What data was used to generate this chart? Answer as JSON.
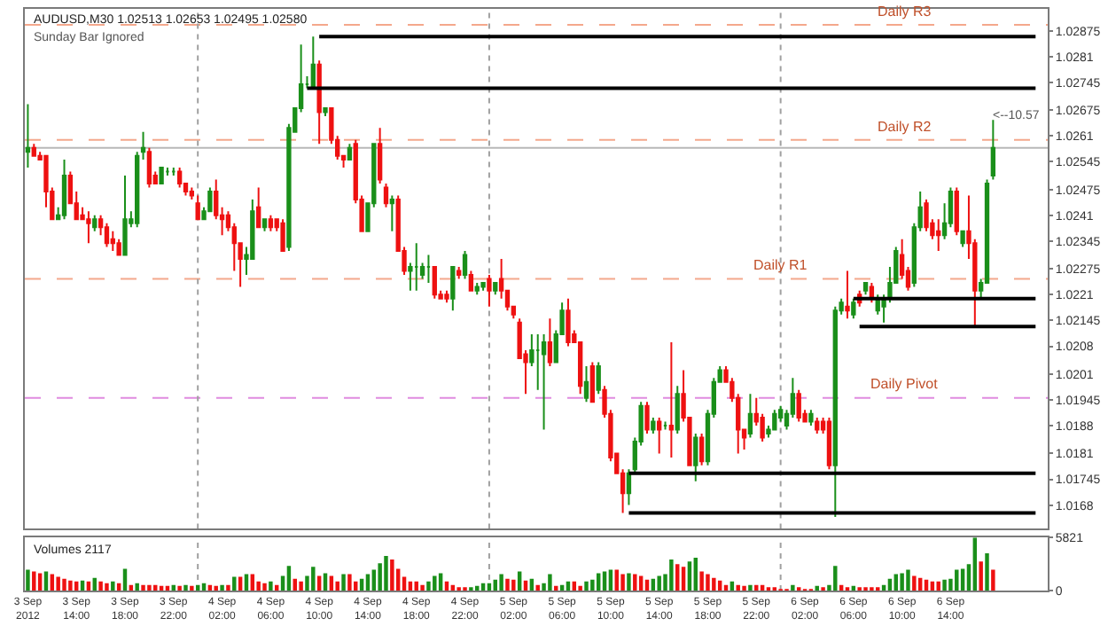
{
  "chart_data": [
    {
      "type": "candlestick",
      "title": "AUDUSD,M30 1.02513 1.02653 1.02495 1.02580",
      "subtitle": "Sunday Bar Ignored",
      "colors": [
        "#1a8f1a",
        "#ee1111",
        "#ee1111",
        "#ee1111",
        "#ee1111",
        "#1a8f1a",
        "#1a8f1a",
        "#ee1111",
        "#ee1111",
        "#ee1111",
        "#ee1111",
        "#1a8f1a",
        "#ee1111",
        "#ee1111",
        "#ee1111",
        "#ee1111",
        "#1a8f1a",
        "#1a8f1a",
        "#1a8f1a",
        "#1a8f1a",
        "#ee1111",
        "#ee1111",
        "#1a8f1a",
        "#1a8f1a",
        "#1a8f1a",
        "#ee1111",
        "#ee1111",
        "#ee1111",
        "#ee1111",
        "#1a8f1a",
        "#1a8f1a",
        "#ee1111",
        "#ee1111",
        "#ee1111",
        "#ee1111",
        "#ee1111",
        "#1a8f1a",
        "#1a8f1a",
        "#ee1111",
        "#1a8f1a",
        "#ee1111",
        "#ee1111",
        "#ee1111",
        "#1a8f1a",
        "#1a8f1a",
        "#1a8f1a",
        "#1a8f1a",
        "#1a8f1a",
        "#ee1111",
        "#1a8f1a",
        "#ee1111",
        "#ee1111",
        "#ee1111",
        "#1a8f1a",
        "#ee1111",
        "#ee1111",
        "#1a8f1a",
        "#1a8f1a",
        "#ee1111",
        "#ee1111",
        "#1a8f1a",
        "#ee1111",
        "#ee1111",
        "#1a8f1a",
        "#1a8f1a",
        "#1a8f1a",
        "#1a8f1a",
        "#ee1111",
        "#ee1111",
        "#ee1111",
        "#1a8f1a",
        "#ee1111",
        "#1a8f1a",
        "#ee1111",
        "#1a8f1a",
        "#1a8f1a",
        "#ee1111",
        "#1a8f1a",
        "#ee1111",
        "#ee1111",
        "#ee1111",
        "#ee1111",
        "#ee1111",
        "#1a8f1a",
        "#1a8f1a",
        "#1a8f1a",
        "#ee1111",
        "#1a8f1a",
        "#1a8f1a",
        "#ee1111",
        "#ee1111",
        "#ee1111",
        "#1a8f1a",
        "#ee1111",
        "#1a8f1a",
        "#ee1111",
        "#ee1111",
        "#ee1111",
        "#ee1111",
        "#1a8f1a",
        "#1a8f1a",
        "#1a8f1a",
        "#ee1111",
        "#1a8f1a",
        "#ee1111",
        "#1a8f1a",
        "#ee1111",
        "#1a8f1a",
        "#ee1111",
        "#ee1111",
        "#1a8f1a",
        "#ee1111",
        "#1a8f1a",
        "#1a8f1a",
        "#1a8f1a",
        "#ee1111",
        "#ee1111",
        "#ee1111",
        "#ee1111",
        "#1a8f1a",
        "#ee1111",
        "#ee1111",
        "#1a8f1a",
        "#1a8f1a",
        "#1a8f1a",
        "#1a8f1a",
        "#1a8f1a",
        "#ee1111",
        "#ee1111",
        "#1a8f1a",
        "#ee1111",
        "#ee1111",
        "#ee1111",
        "#1a8f1a",
        "#1a8f1a",
        "#ee1111",
        "#1a8f1a",
        "#ee1111",
        "#1a8f1a",
        "#ee1111",
        "#1a8f1a",
        "#1a8f1a",
        "#1a8f1a",
        "#1a8f1a",
        "#ee1111",
        "#ee1111",
        "#1a8f1a",
        "#1a8f1a",
        "#ee1111",
        "#ee1111",
        "#ee1111",
        "#1a8f1a",
        "#1a8f1a",
        "#ee1111",
        "#1a8f1a",
        "#ee1111",
        "#ee1111",
        "#1a8f1a",
        "#1a8f1a",
        "#1a8f1a"
      ],
      "x": [
        "2012-09-03T10:00",
        "2012-09-03T10:30",
        "2012-09-03T11:00",
        "2012-09-03T11:30",
        "2012-09-03T12:00",
        "2012-09-03T12:30",
        "2012-09-03T13:00",
        "2012-09-03T13:30",
        "2012-09-03T14:00",
        "2012-09-03T14:30",
        "2012-09-03T15:00",
        "2012-09-03T15:30",
        "2012-09-03T16:00",
        "2012-09-03T16:30",
        "2012-09-03T17:00",
        "2012-09-03T17:30",
        "2012-09-03T18:00",
        "2012-09-03T18:30",
        "2012-09-03T19:00",
        "2012-09-03T19:30",
        "2012-09-03T20:00",
        "2012-09-03T20:30",
        "2012-09-03T21:00",
        "2012-09-03T21:30",
        "2012-09-03T22:00",
        "2012-09-03T22:30",
        "2012-09-03T23:00",
        "2012-09-03T23:30",
        "2012-09-04T00:00",
        "2012-09-04T00:30",
        "2012-09-04T01:00",
        "2012-09-04T01:30",
        "2012-09-04T02:00",
        "2012-09-04T02:30",
        "2012-09-04T03:00",
        "2012-09-04T03:30",
        "2012-09-04T04:00",
        "2012-09-04T04:30",
        "2012-09-04T05:00",
        "2012-09-04T05:30",
        "2012-09-04T06:00",
        "2012-09-04T06:30",
        "2012-09-04T07:00",
        "2012-09-04T07:30",
        "2012-09-04T08:00",
        "2012-09-04T08:30",
        "2012-09-04T09:00",
        "2012-09-04T09:30",
        "2012-09-04T10:00",
        "2012-09-04T10:30",
        "2012-09-04T11:00",
        "2012-09-04T11:30",
        "2012-09-04T12:00",
        "2012-09-04T12:30",
        "2012-09-04T13:00",
        "2012-09-04T13:30",
        "2012-09-04T14:00",
        "2012-09-04T14:30",
        "2012-09-04T15:00",
        "2012-09-04T15:30",
        "2012-09-04T16:00",
        "2012-09-04T16:30",
        "2012-09-04T17:00",
        "2012-09-04T17:30",
        "2012-09-04T18:00",
        "2012-09-04T18:30",
        "2012-09-04T19:00",
        "2012-09-04T19:30",
        "2012-09-04T20:00",
        "2012-09-04T20:30",
        "2012-09-04T21:00",
        "2012-09-04T21:30",
        "2012-09-04T22:00",
        "2012-09-04T22:30",
        "2012-09-04T23:00",
        "2012-09-04T23:30",
        "2012-09-05T00:00",
        "2012-09-05T00:30",
        "2012-09-05T01:00",
        "2012-09-05T01:30",
        "2012-09-05T02:00",
        "2012-09-05T02:30",
        "2012-09-05T03:00",
        "2012-09-05T03:30",
        "2012-09-05T04:00",
        "2012-09-05T04:30",
        "2012-09-05T05:00",
        "2012-09-05T05:30",
        "2012-09-05T06:00",
        "2012-09-05T06:30",
        "2012-09-05T07:00",
        "2012-09-05T07:30",
        "2012-09-05T08:00",
        "2012-09-05T08:30",
        "2012-09-05T09:00",
        "2012-09-05T09:30",
        "2012-09-05T10:00",
        "2012-09-05T10:30",
        "2012-09-05T11:00",
        "2012-09-05T11:30",
        "2012-09-05T12:00",
        "2012-09-05T12:30",
        "2012-09-05T13:00",
        "2012-09-05T13:30",
        "2012-09-05T14:00",
        "2012-09-05T14:30",
        "2012-09-05T15:00",
        "2012-09-05T15:30",
        "2012-09-05T16:00",
        "2012-09-05T16:30",
        "2012-09-05T17:00",
        "2012-09-05T17:30",
        "2012-09-05T18:00",
        "2012-09-05T18:30",
        "2012-09-05T19:00",
        "2012-09-05T19:30",
        "2012-09-05T20:00",
        "2012-09-05T20:30",
        "2012-09-05T21:00",
        "2012-09-05T21:30",
        "2012-09-05T22:00",
        "2012-09-05T22:30",
        "2012-09-05T23:00",
        "2012-09-05T23:30",
        "2012-09-06T00:00",
        "2012-09-06T00:30",
        "2012-09-06T01:00",
        "2012-09-06T01:30",
        "2012-09-06T02:00",
        "2012-09-06T02:30",
        "2012-09-06T03:00",
        "2012-09-06T03:30",
        "2012-09-06T04:00",
        "2012-09-06T04:30",
        "2012-09-06T05:00",
        "2012-09-06T05:30",
        "2012-09-06T06:00",
        "2012-09-06T06:30",
        "2012-09-06T07:00",
        "2012-09-06T07:30",
        "2012-09-06T08:00",
        "2012-09-06T08:30",
        "2012-09-06T09:00",
        "2012-09-06T09:30",
        "2012-09-06T10:00",
        "2012-09-06T10:30",
        "2012-09-06T11:00",
        "2012-09-06T11:30",
        "2012-09-06T12:00",
        "2012-09-06T12:30",
        "2012-09-06T13:00",
        "2012-09-06T13:30",
        "2012-09-06T14:00",
        "2012-09-06T14:30",
        "2012-09-06T15:00",
        "2012-09-06T15:30",
        "2012-09-06T16:00",
        "2012-09-06T16:30",
        "2012-09-06T17:00",
        "2012-09-06T17:30"
      ],
      "ohlc": [
        [
          1.0257,
          1.0269,
          1.0253,
          1.0258
        ],
        [
          1.0258,
          1.0259,
          1.0256,
          1.0256
        ],
        [
          1.0256,
          1.0257,
          1.0255,
          1.0255
        ],
        [
          1.0256,
          1.0256,
          1.0243,
          1.0247
        ],
        [
          1.0247,
          1.0248,
          1.024,
          1.024
        ],
        [
          1.024,
          1.0243,
          1.024,
          1.0241
        ],
        [
          1.0241,
          1.0255,
          1.024,
          1.0251
        ],
        [
          1.0251,
          1.0252,
          1.0244,
          1.0244
        ],
        [
          1.0244,
          1.0247,
          1.024,
          1.024
        ],
        [
          1.0241,
          1.0243,
          1.024,
          1.024
        ],
        [
          1.024,
          1.0242,
          1.0234,
          1.0239
        ],
        [
          1.0238,
          1.0241,
          1.0237,
          1.024
        ],
        [
          1.024,
          1.0241,
          1.0236,
          1.0238
        ],
        [
          1.0238,
          1.0239,
          1.0233,
          1.0234
        ],
        [
          1.0235,
          1.0237,
          1.0232,
          1.0234
        ],
        [
          1.0234,
          1.0235,
          1.0231,
          1.0231
        ],
        [
          1.0231,
          1.0251,
          1.0231,
          1.024
        ],
        [
          1.0239,
          1.0242,
          1.0238,
          1.024
        ],
        [
          1.0239,
          1.0257,
          1.0238,
          1.0256
        ],
        [
          1.0257,
          1.0262,
          1.0255,
          1.0258
        ],
        [
          1.0257,
          1.0258,
          1.0248,
          1.0249
        ],
        [
          1.0251,
          1.0252,
          1.0249,
          1.0249
        ],
        [
          1.0249,
          1.0253,
          1.0249,
          1.0253
        ],
        [
          1.0252,
          1.0253,
          1.0251,
          1.0252
        ],
        [
          1.0252,
          1.0253,
          1.0251,
          1.0252
        ],
        [
          1.0252,
          1.0253,
          1.0248,
          1.0249
        ],
        [
          1.0249,
          1.0249,
          1.0246,
          1.0247
        ],
        [
          1.0247,
          1.0248,
          1.0245,
          1.0246
        ],
        [
          1.0244,
          1.0246,
          1.024,
          1.024
        ],
        [
          1.024,
          1.0243,
          1.024,
          1.0242
        ],
        [
          1.0242,
          1.0248,
          1.0242,
          1.0247
        ],
        [
          1.0247,
          1.025,
          1.024,
          1.0241
        ],
        [
          1.0241,
          1.0243,
          1.0236,
          1.024
        ],
        [
          1.0241,
          1.0242,
          1.0237,
          1.0238
        ],
        [
          1.0238,
          1.0239,
          1.0227,
          1.0234
        ],
        [
          1.0234,
          1.0234,
          1.0223,
          1.023
        ],
        [
          1.023,
          1.0233,
          1.0226,
          1.0231
        ],
        [
          1.023,
          1.0245,
          1.023,
          1.0242
        ],
        [
          1.0243,
          1.0248,
          1.0238,
          1.0238
        ],
        [
          1.0238,
          1.024,
          1.0237,
          1.024
        ],
        [
          1.024,
          1.0241,
          1.0237,
          1.0238
        ],
        [
          1.024,
          1.024,
          1.0237,
          1.0238
        ],
        [
          1.0239,
          1.024,
          1.0232,
          1.0232
        ],
        [
          1.0233,
          1.0264,
          1.0232,
          1.0263
        ],
        [
          1.0262,
          1.0268,
          1.0262,
          1.0268
        ],
        [
          1.0268,
          1.0284,
          1.0267,
          1.0274
        ],
        [
          1.0274,
          1.0276,
          1.0273,
          1.0274
        ],
        [
          1.0273,
          1.0286,
          1.0273,
          1.0279
        ],
        [
          1.0279,
          1.028,
          1.0259,
          1.0267
        ],
        [
          1.0267,
          1.0268,
          1.0266,
          1.0268
        ],
        [
          1.0268,
          1.0268,
          1.0259,
          1.026
        ],
        [
          1.026,
          1.0261,
          1.0255,
          1.0256
        ],
        [
          1.0256,
          1.0256,
          1.0253,
          1.0255
        ],
        [
          1.0255,
          1.0259,
          1.0255,
          1.0258
        ],
        [
          1.0259,
          1.026,
          1.0244,
          1.0245
        ],
        [
          1.0245,
          1.0246,
          1.0237,
          1.0237
        ],
        [
          1.0237,
          1.0244,
          1.0237,
          1.0244
        ],
        [
          1.0244,
          1.0259,
          1.0243,
          1.0259
        ],
        [
          1.0259,
          1.0263,
          1.0249,
          1.025
        ],
        [
          1.0248,
          1.0249,
          1.0243,
          1.0244
        ],
        [
          1.0244,
          1.0246,
          1.0237,
          1.0245
        ],
        [
          1.0245,
          1.0246,
          1.0232,
          1.0232
        ],
        [
          1.0232,
          1.0233,
          1.0226,
          1.0227
        ],
        [
          1.0227,
          1.0229,
          1.0222,
          1.0228
        ],
        [
          1.0228,
          1.0234,
          1.0222,
          1.0228
        ],
        [
          1.0226,
          1.0229,
          1.0225,
          1.0228
        ],
        [
          1.0228,
          1.0231,
          1.0224,
          1.0228
        ],
        [
          1.0228,
          1.0228,
          1.022,
          1.0221
        ],
        [
          1.0221,
          1.0222,
          1.022,
          1.022
        ],
        [
          1.0221,
          1.0222,
          1.0219,
          1.022
        ],
        [
          1.022,
          1.0228,
          1.0217,
          1.0228
        ],
        [
          1.0227,
          1.0228,
          1.0225,
          1.0226
        ],
        [
          1.0226,
          1.0232,
          1.0225,
          1.0231
        ],
        [
          1.0226,
          1.0227,
          1.0222,
          1.0222
        ],
        [
          1.0222,
          1.0224,
          1.0221,
          1.0223
        ],
        [
          1.0223,
          1.0224,
          1.0222,
          1.0224
        ],
        [
          1.0225,
          1.0226,
          1.0218,
          1.0222
        ],
        [
          1.0222,
          1.0224,
          1.0221,
          1.0224
        ],
        [
          1.0225,
          1.023,
          1.022,
          1.0222
        ],
        [
          1.0222,
          1.0222,
          1.0217,
          1.0218
        ],
        [
          1.0218,
          1.0218,
          1.0215,
          1.0216
        ],
        [
          1.0214,
          1.0215,
          1.0205,
          1.0205
        ],
        [
          1.0206,
          1.0207,
          1.0196,
          1.0204
        ],
        [
          1.0204,
          1.0211,
          1.0203,
          1.0207
        ],
        [
          1.0207,
          1.0211,
          1.0197,
          1.0207
        ],
        [
          1.0206,
          1.0211,
          1.0187,
          1.0209
        ],
        [
          1.0209,
          1.0215,
          1.0203,
          1.0204
        ],
        [
          1.0204,
          1.0212,
          1.0204,
          1.0211
        ],
        [
          1.0211,
          1.0219,
          1.0211,
          1.0217
        ],
        [
          1.0217,
          1.022,
          1.0208,
          1.0209
        ],
        [
          1.0211,
          1.0212,
          1.0209,
          1.0209
        ],
        [
          1.0209,
          1.0209,
          1.0196,
          1.0198
        ],
        [
          1.0195,
          1.0203,
          1.0194,
          1.0199
        ],
        [
          1.0203,
          1.0204,
          1.0194,
          1.0194
        ],
        [
          1.0197,
          1.0204,
          1.0196,
          1.0203
        ],
        [
          1.0197,
          1.0198,
          1.019,
          1.0191
        ],
        [
          1.0191,
          1.0192,
          1.0179,
          1.018
        ],
        [
          1.0181,
          1.0181,
          1.0176,
          1.0176
        ],
        [
          1.0176,
          1.0177,
          1.0166,
          1.0171
        ],
        [
          1.0171,
          1.0177,
          1.0168,
          1.0176
        ],
        [
          1.0177,
          1.0185,
          1.0176,
          1.0184
        ],
        [
          1.0184,
          1.0194,
          1.0183,
          1.0193
        ],
        [
          1.0193,
          1.0194,
          1.0186,
          1.0187
        ],
        [
          1.0187,
          1.019,
          1.0186,
          1.0189
        ],
        [
          1.0189,
          1.019,
          1.0181,
          1.0187
        ],
        [
          1.0188,
          1.0189,
          1.0187,
          1.0188
        ],
        [
          1.0188,
          1.0209,
          1.018,
          1.0187
        ],
        [
          1.0187,
          1.0198,
          1.0186,
          1.0196
        ],
        [
          1.0196,
          1.0202,
          1.0189,
          1.019
        ],
        [
          1.019,
          1.019,
          1.0178,
          1.0178
        ],
        [
          1.0178,
          1.0186,
          1.0174,
          1.0185
        ],
        [
          1.0185,
          1.0186,
          1.0178,
          1.0179
        ],
        [
          1.0179,
          1.0192,
          1.0178,
          1.0191
        ],
        [
          1.0191,
          1.02,
          1.019,
          1.0199
        ],
        [
          1.0199,
          1.0203,
          1.0199,
          1.0202
        ],
        [
          1.0202,
          1.0203,
          1.0199,
          1.0199
        ],
        [
          1.0199,
          1.02,
          1.0194,
          1.0195
        ],
        [
          1.0195,
          1.0196,
          1.0181,
          1.0187
        ],
        [
          1.0187,
          1.0187,
          1.0182,
          1.0185
        ],
        [
          1.0186,
          1.0196,
          1.0185,
          1.0191
        ],
        [
          1.0191,
          1.0195,
          1.0188,
          1.0189
        ],
        [
          1.019,
          1.0191,
          1.0184,
          1.0185
        ],
        [
          1.0186,
          1.0188,
          1.0185,
          1.0187
        ],
        [
          1.0187,
          1.0192,
          1.0187,
          1.0191
        ],
        [
          1.019,
          1.0193,
          1.0189,
          1.0192
        ],
        [
          1.0188,
          1.0192,
          1.0187,
          1.0191
        ],
        [
          1.0191,
          1.02,
          1.019,
          1.0196
        ],
        [
          1.0196,
          1.0197,
          1.0189,
          1.019
        ],
        [
          1.0191,
          1.0192,
          1.0189,
          1.0189
        ],
        [
          1.0189,
          1.0192,
          1.0188,
          1.0191
        ],
        [
          1.0189,
          1.019,
          1.0186,
          1.0187
        ],
        [
          1.0189,
          1.019,
          1.0186,
          1.0187
        ],
        [
          1.0189,
          1.019,
          1.0177,
          1.0178
        ],
        [
          1.0178,
          1.0218,
          1.0165,
          1.0217
        ],
        [
          1.0217,
          1.022,
          1.0216,
          1.0219
        ],
        [
          1.0218,
          1.0227,
          1.0215,
          1.0217
        ],
        [
          1.0216,
          1.022,
          1.0215,
          1.0219
        ],
        [
          1.0221,
          1.0222,
          1.0218,
          1.0219
        ],
        [
          1.0222,
          1.0224,
          1.0221,
          1.0224
        ],
        [
          1.0223,
          1.0224,
          1.0219,
          1.022
        ],
        [
          1.0217,
          1.0221,
          1.0216,
          1.022
        ],
        [
          1.0218,
          1.0221,
          1.0214,
          1.022
        ],
        [
          1.022,
          1.0228,
          1.0219,
          1.0224
        ],
        [
          1.0224,
          1.0233,
          1.0224,
          1.0232
        ],
        [
          1.0231,
          1.0235,
          1.0225,
          1.0226
        ],
        [
          1.0227,
          1.0228,
          1.0222,
          1.0223
        ],
        [
          1.0224,
          1.0239,
          1.0223,
          1.0238
        ],
        [
          1.0238,
          1.0247,
          1.0237,
          1.0243
        ],
        [
          1.0244,
          1.0245,
          1.0237,
          1.0238
        ],
        [
          1.0239,
          1.024,
          1.0235,
          1.0236
        ],
        [
          1.0237,
          1.024,
          1.0232,
          1.0236
        ],
        [
          1.0236,
          1.0244,
          1.0235,
          1.0239
        ],
        [
          1.0239,
          1.0248,
          1.0238,
          1.0247
        ],
        [
          1.0247,
          1.0248,
          1.0236,
          1.0237
        ],
        [
          1.0234,
          1.0237,
          1.0233,
          1.0237
        ],
        [
          1.0237,
          1.0246,
          1.023,
          1.0234
        ],
        [
          1.0234,
          1.0235,
          1.0213,
          1.0222
        ],
        [
          1.0222,
          1.0225,
          1.022,
          1.0224
        ],
        [
          1.0224,
          1.025,
          1.0224,
          1.0249
        ],
        [
          1.0251,
          1.0265,
          1.025,
          1.0258
        ]
      ],
      "series": [
        {
          "type": "line",
          "color": "#000000",
          "x": [
            "2012-09-04T10:00",
            "2012-09-06T21:00"
          ],
          "values": [
            1.0286,
            1.0286
          ]
        },
        {
          "type": "line",
          "color": "#000000",
          "x": [
            "2012-09-04T09:00",
            "2012-09-06T21:00"
          ],
          "values": [
            1.0273,
            1.0273
          ]
        },
        {
          "type": "line",
          "color": "#000000",
          "x": [
            "2012-09-06T06:00",
            "2012-09-06T21:00"
          ],
          "values": [
            1.022,
            1.022
          ]
        },
        {
          "type": "line",
          "color": "#000000",
          "x": [
            "2012-09-06T06:30",
            "2012-09-06T21:00"
          ],
          "values": [
            1.0213,
            1.0213
          ]
        },
        {
          "type": "line",
          "color": "#000000",
          "x": [
            "2012-09-05T11:30",
            "2012-09-06T21:00"
          ],
          "values": [
            1.0176,
            1.0176
          ]
        },
        {
          "type": "line",
          "color": "#000000",
          "x": [
            "2012-09-05T11:30",
            "2012-09-06T21:00"
          ],
          "values": [
            1.0166,
            1.0166
          ]
        }
      ],
      "ref_lines": [
        {
          "axis": "y",
          "value": 1.0289,
          "label": "Daily R3",
          "color": "#f4a88c",
          "line_style": "dashed"
        },
        {
          "axis": "y",
          "value": 1.026,
          "label": "Daily R2",
          "color": "#f4a88c",
          "line_style": "dashed"
        },
        {
          "axis": "y",
          "value": 1.0225,
          "label": "Daily R1",
          "color": "#f4a88c",
          "line_style": "dashed"
        },
        {
          "axis": "y",
          "value": 1.0195,
          "label": "Daily Pivot",
          "color": "#e08ce0",
          "line_style": "dashed"
        },
        {
          "axis": "y",
          "value": 1.0258,
          "color": "#b8b8b8",
          "line_style": "solid"
        },
        {
          "axis": "x",
          "value": "2012-09-04T00:00",
          "color": "#a0a0a0",
          "line_style": "dotted"
        },
        {
          "axis": "x",
          "value": "2012-09-05T00:00",
          "color": "#a0a0a0",
          "line_style": "dotted"
        },
        {
          "axis": "x",
          "value": "2012-09-06T00:00",
          "color": "#a0a0a0",
          "line_style": "dotted"
        }
      ],
      "annotations": [
        "<--10.57"
      ],
      "xlim": [
        "2012-09-03T09:45",
        "2012-09-06T22:00"
      ],
      "ylim": [
        1.0162,
        1.0293
      ],
      "yticks": [
        1.02875,
        1.0281,
        1.02745,
        1.02675,
        1.0261,
        1.02545,
        1.02475,
        1.0241,
        1.02345,
        1.02275,
        1.0221,
        1.02145,
        1.0208,
        1.0201,
        1.01945,
        1.0188,
        1.0181,
        1.01745,
        1.0168
      ],
      "tick_labels": "y"
    },
    {
      "type": "bar",
      "title": "Volumes 2117",
      "x": [
        "2012-09-03T10:00",
        "2012-09-03T10:30",
        "2012-09-03T11:00",
        "2012-09-03T11:30",
        "2012-09-03T12:00",
        "2012-09-03T12:30",
        "2012-09-03T13:00",
        "2012-09-03T13:30",
        "2012-09-03T14:00",
        "2012-09-03T14:30",
        "2012-09-03T15:00",
        "2012-09-03T15:30",
        "2012-09-03T16:00",
        "2012-09-03T16:30",
        "2012-09-03T17:00",
        "2012-09-03T17:30",
        "2012-09-03T18:00",
        "2012-09-03T18:30",
        "2012-09-03T19:00",
        "2012-09-03T19:30",
        "2012-09-03T20:00",
        "2012-09-03T20:30",
        "2012-09-03T21:00",
        "2012-09-03T21:30",
        "2012-09-03T22:00",
        "2012-09-03T22:30",
        "2012-09-03T23:00",
        "2012-09-03T23:30",
        "2012-09-04T00:00",
        "2012-09-04T00:30",
        "2012-09-04T01:00",
        "2012-09-04T01:30",
        "2012-09-04T02:00",
        "2012-09-04T02:30",
        "2012-09-04T03:00",
        "2012-09-04T03:30",
        "2012-09-04T04:00",
        "2012-09-04T04:30",
        "2012-09-04T05:00",
        "2012-09-04T05:30",
        "2012-09-04T06:00",
        "2012-09-04T06:30",
        "2012-09-04T07:00",
        "2012-09-04T07:30",
        "2012-09-04T08:00",
        "2012-09-04T08:30",
        "2012-09-04T09:00",
        "2012-09-04T09:30",
        "2012-09-04T10:00",
        "2012-09-04T10:30",
        "2012-09-04T11:00",
        "2012-09-04T11:30",
        "2012-09-04T12:00",
        "2012-09-04T12:30",
        "2012-09-04T13:00",
        "2012-09-04T13:30",
        "2012-09-04T14:00",
        "2012-09-04T14:30",
        "2012-09-04T15:00",
        "2012-09-04T15:30",
        "2012-09-04T16:00",
        "2012-09-04T16:30",
        "2012-09-04T17:00",
        "2012-09-04T17:30",
        "2012-09-04T18:00",
        "2012-09-04T18:30",
        "2012-09-04T19:00",
        "2012-09-04T19:30",
        "2012-09-04T20:00",
        "2012-09-04T20:30",
        "2012-09-04T21:00",
        "2012-09-04T21:30",
        "2012-09-04T22:00",
        "2012-09-04T22:30",
        "2012-09-04T23:00",
        "2012-09-04T23:30",
        "2012-09-05T00:00",
        "2012-09-05T00:30",
        "2012-09-05T01:00",
        "2012-09-05T01:30",
        "2012-09-05T02:00",
        "2012-09-05T02:30",
        "2012-09-05T03:00",
        "2012-09-05T03:30",
        "2012-09-05T04:00",
        "2012-09-05T04:30",
        "2012-09-05T05:00",
        "2012-09-05T05:30",
        "2012-09-05T06:00",
        "2012-09-05T06:30",
        "2012-09-05T07:00",
        "2012-09-05T07:30",
        "2012-09-05T08:00",
        "2012-09-05T08:30",
        "2012-09-05T09:00",
        "2012-09-05T09:30",
        "2012-09-05T10:00",
        "2012-09-05T10:30",
        "2012-09-05T11:00",
        "2012-09-05T11:30",
        "2012-09-05T12:00",
        "2012-09-05T12:30",
        "2012-09-05T13:00",
        "2012-09-05T13:30",
        "2012-09-05T14:00",
        "2012-09-05T14:30",
        "2012-09-05T15:00",
        "2012-09-05T15:30",
        "2012-09-05T16:00",
        "2012-09-05T16:30",
        "2012-09-05T17:00",
        "2012-09-05T17:30",
        "2012-09-05T18:00",
        "2012-09-05T18:30",
        "2012-09-05T19:00",
        "2012-09-05T19:30",
        "2012-09-05T20:00",
        "2012-09-05T20:30",
        "2012-09-05T21:00",
        "2012-09-05T21:30",
        "2012-09-05T22:00",
        "2012-09-05T22:30",
        "2012-09-05T23:00",
        "2012-09-05T23:30",
        "2012-09-06T00:00",
        "2012-09-06T00:30",
        "2012-09-06T01:00",
        "2012-09-06T01:30",
        "2012-09-06T02:00",
        "2012-09-06T02:30",
        "2012-09-06T03:00",
        "2012-09-06T03:30",
        "2012-09-06T04:00",
        "2012-09-06T04:30",
        "2012-09-06T05:00",
        "2012-09-06T05:30",
        "2012-09-06T06:00",
        "2012-09-06T06:30",
        "2012-09-06T07:00",
        "2012-09-06T07:30",
        "2012-09-06T08:00",
        "2012-09-06T08:30",
        "2012-09-06T09:00",
        "2012-09-06T09:30",
        "2012-09-06T10:00",
        "2012-09-06T10:30",
        "2012-09-06T11:00",
        "2012-09-06T11:30",
        "2012-09-06T12:00",
        "2012-09-06T12:30",
        "2012-09-06T13:00",
        "2012-09-06T13:30",
        "2012-09-06T14:00",
        "2012-09-06T14:30",
        "2012-09-06T15:00",
        "2012-09-06T15:30",
        "2012-09-06T16:00",
        "2012-09-06T16:30",
        "2012-09-06T17:00",
        "2012-09-06T17:30"
      ],
      "values": [
        2300,
        2100,
        1900,
        2100,
        1800,
        1500,
        1300,
        1100,
        1000,
        1100,
        1000,
        1400,
        1000,
        800,
        1000,
        800,
        2400,
        600,
        800,
        600,
        600,
        600,
        500,
        500,
        600,
        500,
        600,
        500,
        600,
        800,
        600,
        500,
        600,
        600,
        1500,
        1500,
        1800,
        1800,
        1000,
        800,
        1000,
        600,
        1600,
        2700,
        1300,
        1000,
        1600,
        2600,
        1600,
        1900,
        1600,
        1000,
        1800,
        1800,
        1000,
        1300,
        1800,
        2300,
        3000,
        3800,
        3400,
        2400,
        1500,
        1000,
        1000,
        600,
        1000,
        1600,
        1900,
        1000,
        600,
        300,
        200,
        300,
        500,
        800,
        800,
        1200,
        1800,
        1300,
        1200,
        2100,
        1100,
        1300,
        600,
        800,
        1800,
        500,
        600,
        1000,
        1000,
        500,
        1000,
        1200,
        1900,
        2100,
        2300,
        2300,
        1800,
        1900,
        1800,
        1600,
        1200,
        1300,
        1600,
        1800,
        3400,
        2900,
        2600,
        3200,
        3600,
        2100,
        1800,
        1400,
        1100,
        600,
        1000,
        600,
        500,
        600,
        600,
        600,
        300,
        200,
        100,
        100,
        600,
        300,
        100,
        100,
        500,
        300,
        600,
        2700,
        600,
        300,
        500,
        300,
        300,
        300,
        300,
        600,
        1300,
        1800,
        1900,
        2300,
        1600,
        1400,
        1200,
        1000,
        1000,
        1200,
        1300,
        2300,
        2400,
        2900,
        5821,
        3200,
        4100,
        2300
      ],
      "colors": [
        "#1a8f1a",
        "#ee1111",
        "#ee1111",
        "#1a8f1a",
        "#ee1111",
        "#ee1111",
        "#ee1111",
        "#ee1111",
        "#ee1111",
        "#1a8f1a",
        "#ee1111",
        "#1a8f1a",
        "#ee1111",
        "#ee1111",
        "#1a8f1a",
        "#ee1111",
        "#1a8f1a",
        "#ee1111",
        "#1a8f1a",
        "#ee1111",
        "#ee1111",
        "#ee1111",
        "#ee1111",
        "#ee1111",
        "#1a8f1a",
        "#ee1111",
        "#1a8f1a",
        "#ee1111",
        "#1a8f1a",
        "#1a8f1a",
        "#ee1111",
        "#ee1111",
        "#1a8f1a",
        "#ee1111",
        "#1a8f1a",
        "#ee1111",
        "#1a8f1a",
        "#ee1111",
        "#ee1111",
        "#ee1111",
        "#1a8f1a",
        "#ee1111",
        "#1a8f1a",
        "#1a8f1a",
        "#ee1111",
        "#ee1111",
        "#1a8f1a",
        "#1a8f1a",
        "#ee1111",
        "#1a8f1a",
        "#ee1111",
        "#ee1111",
        "#1a8f1a",
        "#ee1111",
        "#ee1111",
        "#1a8f1a",
        "#1a8f1a",
        "#1a8f1a",
        "#1a8f1a",
        "#1a8f1a",
        "#ee1111",
        "#ee1111",
        "#ee1111",
        "#ee1111",
        "#ee1111",
        "#ee1111",
        "#1a8f1a",
        "#1a8f1a",
        "#1a8f1a",
        "#ee1111",
        "#ee1111",
        "#ee1111",
        "#ee1111",
        "#1a8f1a",
        "#1a8f1a",
        "#1a8f1a",
        "#1a8f1a",
        "#1a8f1a",
        "#1a8f1a",
        "#ee1111",
        "#ee1111",
        "#1a8f1a",
        "#ee1111",
        "#1a8f1a",
        "#ee1111",
        "#1a8f1a",
        "#1a8f1a",
        "#ee1111",
        "#1a8f1a",
        "#1a8f1a",
        "#ee1111",
        "#ee1111",
        "#1a8f1a",
        "#1a8f1a",
        "#1a8f1a",
        "#1a8f1a",
        "#1a8f1a",
        "#ee1111",
        "#ee1111",
        "#1a8f1a",
        "#ee1111",
        "#ee1111",
        "#ee1111",
        "#1a8f1a",
        "#1a8f1a",
        "#1a8f1a",
        "#1a8f1a",
        "#ee1111",
        "#ee1111",
        "#1a8f1a",
        "#1a8f1a",
        "#ee1111",
        "#ee1111",
        "#ee1111",
        "#ee1111",
        "#ee1111",
        "#1a8f1a",
        "#ee1111",
        "#ee1111",
        "#1a8f1a",
        "#ee1111",
        "#ee1111",
        "#ee1111",
        "#ee1111",
        "#ee1111",
        "#ee1111",
        "#1a8f1a",
        "#ee1111",
        "#ee1111",
        "#ee1111",
        "#1a8f1a",
        "#ee1111",
        "#1a8f1a",
        "#1a8f1a",
        "#ee1111",
        "#ee1111",
        "#1a8f1a",
        "#ee1111",
        "#ee1111",
        "#ee1111",
        "#ee1111",
        "#1a8f1a",
        "#1a8f1a",
        "#1a8f1a",
        "#1a8f1a",
        "#1a8f1a",
        "#ee1111",
        "#ee1111",
        "#ee1111",
        "#ee1111",
        "#ee1111",
        "#1a8f1a",
        "#1a8f1a",
        "#1a8f1a",
        "#1a8f1a",
        "#1a8f1a",
        "#1a8f1a",
        "#ee1111",
        "#1a8f1a",
        "#ee1111"
      ],
      "ref_lines": [
        {
          "axis": "x",
          "value": "2012-09-04T00:00",
          "color": "#a0a0a0",
          "line_style": "dotted"
        },
        {
          "axis": "x",
          "value": "2012-09-05T00:00",
          "color": "#a0a0a0",
          "line_style": "dotted"
        },
        {
          "axis": "x",
          "value": "2012-09-06T00:00",
          "color": "#a0a0a0",
          "line_style": "dotted"
        }
      ],
      "xlim": [
        "2012-09-03T09:45",
        "2012-09-06T22:00"
      ],
      "xticks": [
        {
          "value": "2012-09-03T10:00",
          "label": "3 Sep 2012"
        },
        {
          "value": "2012-09-03T14:00",
          "label": "3 Sep 14:00"
        },
        {
          "value": "2012-09-03T18:00",
          "label": "3 Sep 18:00"
        },
        {
          "value": "2012-09-03T22:00",
          "label": "3 Sep 22:00"
        },
        {
          "value": "2012-09-04T02:00",
          "label": "4 Sep 02:00"
        },
        {
          "value": "2012-09-04T06:00",
          "label": "4 Sep 06:00"
        },
        {
          "value": "2012-09-04T10:00",
          "label": "4 Sep 10:00"
        },
        {
          "value": "2012-09-04T14:00",
          "label": "4 Sep 14:00"
        },
        {
          "value": "2012-09-04T18:00",
          "label": "4 Sep 18:00"
        },
        {
          "value": "2012-09-04T22:00",
          "label": "4 Sep 22:00"
        },
        {
          "value": "2012-09-05T02:00",
          "label": "5 Sep 02:00"
        },
        {
          "value": "2012-09-05T06:00",
          "label": "5 Sep 06:00"
        },
        {
          "value": "2012-09-05T10:00",
          "label": "5 Sep 10:00"
        },
        {
          "value": "2012-09-05T14:00",
          "label": "5 Sep 14:00"
        },
        {
          "value": "2012-09-05T18:00",
          "label": "5 Sep 18:00"
        },
        {
          "value": "2012-09-05T22:00",
          "label": "5 Sep 22:00"
        },
        {
          "value": "2012-09-06T02:00",
          "label": "6 Sep 02:00"
        },
        {
          "value": "2012-09-06T06:00",
          "label": "6 Sep 06:00"
        },
        {
          "value": "2012-09-06T10:00",
          "label": "6 Sep 10:00"
        },
        {
          "value": "2012-09-06T14:00",
          "label": "6 Sep 14:00"
        }
      ],
      "ylim": [
        0,
        5821
      ],
      "yticks": [
        0,
        5821
      ]
    }
  ]
}
